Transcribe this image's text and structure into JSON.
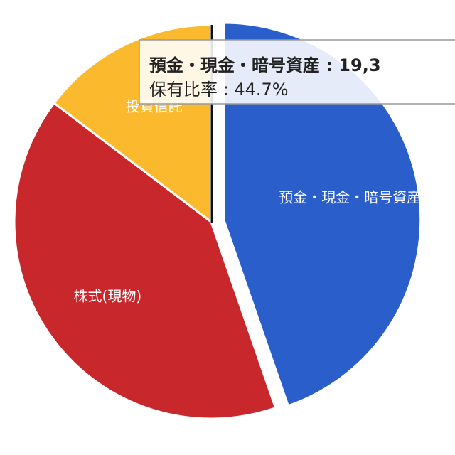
{
  "chart_data": {
    "type": "pie",
    "categories": [
      "預金・現金・暗号資産",
      "株式(現物)",
      "投資信託"
    ],
    "values": [
      44.7,
      40.6,
      14.7
    ],
    "colors": [
      "#2a5fcb",
      "#c8282c",
      "#fbb92d"
    ],
    "exploded": 0,
    "tooltip": {
      "title": "預金・現金・暗号資産 : 19,3",
      "text": "保有比率 : 44.7%"
    }
  }
}
